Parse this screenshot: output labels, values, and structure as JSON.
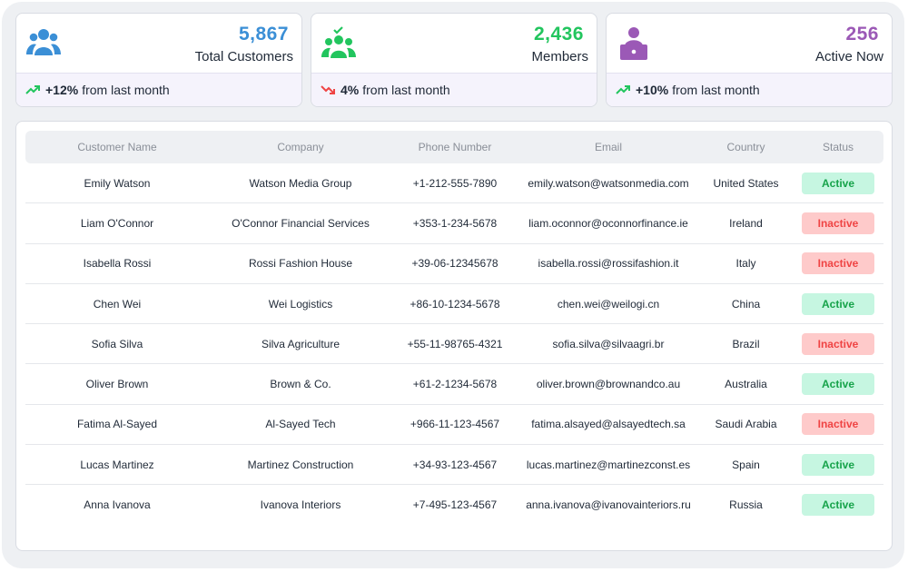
{
  "colors": {
    "blue": "#3b8fd6",
    "green": "#22c55e",
    "purple": "#9b59b6",
    "red": "#ef4444"
  },
  "stats": [
    {
      "value": "5,867",
      "label": "Total Customers",
      "change": "+12%",
      "change_text": "from last month",
      "trend": "up",
      "icon": "users-icon"
    },
    {
      "value": "2,436",
      "label": "Members",
      "change": "4%",
      "change_text": "from last month",
      "trend": "down",
      "icon": "members-check-icon"
    },
    {
      "value": "256",
      "label": "Active Now",
      "change": "+10%",
      "change_text": "from last month",
      "trend": "up",
      "icon": "user-laptop-icon"
    }
  ],
  "table": {
    "columns": [
      "Customer Name",
      "Company",
      "Phone Number",
      "Email",
      "Country",
      "Status"
    ],
    "rows": [
      [
        "Emily Watson",
        "Watson Media Group",
        "+1-212-555-7890",
        "emily.watson@watsonmedia.com",
        "United States",
        "Active"
      ],
      [
        "Liam O'Connor",
        "O'Connor Financial Services",
        "+353-1-234-5678",
        "liam.oconnor@oconnorfinance.ie",
        "Ireland",
        "Inactive"
      ],
      [
        "Isabella Rossi",
        "Rossi Fashion House",
        "+39-06-12345678",
        "isabella.rossi@rossifashion.it",
        "Italy",
        "Inactive"
      ],
      [
        "Chen Wei",
        "Wei Logistics",
        "+86-10-1234-5678",
        "chen.wei@weilogi.cn",
        "China",
        "Active"
      ],
      [
        "Sofia Silva",
        "Silva Agriculture",
        "+55-11-98765-4321",
        "sofia.silva@silvaagri.br",
        "Brazil",
        "Inactive"
      ],
      [
        "Oliver Brown",
        "Brown & Co.",
        "+61-2-1234-5678",
        "oliver.brown@brownandco.au",
        "Australia",
        "Active"
      ],
      [
        "Fatima Al-Sayed",
        "Al-Sayed Tech",
        "+966-11-123-4567",
        "fatima.alsayed@alsayedtech.sa",
        "Saudi Arabia",
        "Inactive"
      ],
      [
        "Lucas Martinez",
        "Martinez Construction",
        "+34-93-123-4567",
        "lucas.martinez@martinezconst.es",
        "Spain",
        "Active"
      ],
      [
        "Anna Ivanova",
        "Ivanova Interiors",
        "+7-495-123-4567",
        "anna.ivanova@ivanovainteriors.ru",
        "Russia",
        "Active"
      ]
    ]
  }
}
